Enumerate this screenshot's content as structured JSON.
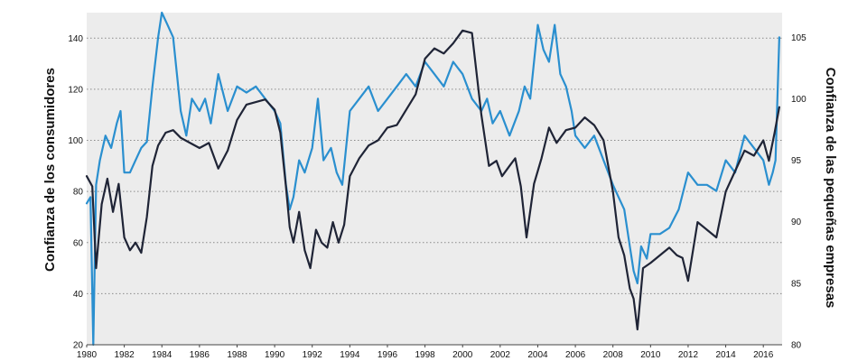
{
  "chart_data": {
    "type": "line",
    "title": "",
    "xlabel": "",
    "ylabel": "Confianza de los consumidores",
    "y2label": "Confianza de las pequeñas empresas",
    "xlim": [
      1980,
      2017
    ],
    "ylim": [
      20,
      150
    ],
    "y2lim": [
      80,
      107
    ],
    "grid": "horizontal dotted",
    "legend": "none",
    "colors": {
      "consumer": "#1f2436",
      "small_business": "#2a8fcf",
      "plot_background": "#ececec",
      "grid": "#8a8a8a"
    },
    "x_ticks": [
      "1980",
      "1982",
      "1984",
      "1986",
      "1988",
      "1990",
      "1992",
      "1994",
      "1996",
      "1998",
      "2000",
      "2002",
      "2004",
      "2006",
      "2008",
      "2010",
      "2012",
      "2014",
      "2016"
    ],
    "y_ticks": [
      "20",
      "40",
      "60",
      "80",
      "100",
      "120",
      "140"
    ],
    "y2_ticks": [
      "80",
      "85",
      "90",
      "95",
      "100",
      "105"
    ],
    "series": [
      {
        "axis": "left",
        "x": [
          1980.0,
          1980.3,
          1980.5,
          1980.8,
          1981.1,
          1981.4,
          1981.7,
          1982.0,
          1982.3,
          1982.6,
          1982.9,
          1983.2,
          1983.5,
          1983.8,
          1984.2,
          1984.6,
          1985.0,
          1985.5,
          1986.0,
          1986.5,
          1987.0,
          1987.5,
          1988.0,
          1988.5,
          1989.0,
          1989.5,
          1990.0,
          1990.3,
          1990.6,
          1990.8,
          1991.0,
          1991.3,
          1991.6,
          1991.9,
          1992.2,
          1992.5,
          1992.8,
          1993.1,
          1993.4,
          1993.7,
          1994.0,
          1994.5,
          1995.0,
          1995.5,
          1996.0,
          1996.5,
          1997.0,
          1997.5,
          1998.0,
          1998.5,
          1999.0,
          1999.5,
          2000.0,
          2000.5,
          2001.0,
          2001.4,
          2001.8,
          2002.1,
          2002.5,
          2002.8,
          2003.1,
          2003.4,
          2003.8,
          2004.2,
          2004.6,
          2005.0,
          2005.5,
          2006.0,
          2006.5,
          2007.0,
          2007.5,
          2008.0,
          2008.3,
          2008.6,
          2008.9,
          2009.1,
          2009.3,
          2009.6,
          2010.0,
          2010.5,
          2011.0,
          2011.4,
          2011.7,
          2012.0,
          2012.5,
          2013.0,
          2013.5,
          2014.0,
          2014.5,
          2015.0,
          2015.5,
          2016.0,
          2016.3,
          2016.6,
          2016.85
        ],
        "values": [
          86,
          82,
          50,
          75,
          85,
          72,
          83,
          62,
          57,
          60,
          56,
          70,
          90,
          98,
          103,
          104,
          101,
          99,
          97,
          99,
          89,
          96,
          108,
          114,
          115,
          116,
          112,
          103,
          82,
          66,
          60,
          72,
          57,
          50,
          65,
          60,
          58,
          68,
          60,
          67,
          86,
          93,
          98,
          100,
          105,
          106,
          112,
          118,
          132,
          136,
          134,
          138,
          143,
          142,
          110,
          90,
          92,
          86,
          90,
          93,
          82,
          62,
          83,
          93,
          105,
          99,
          104,
          105,
          109,
          106,
          100,
          80,
          62,
          55,
          42,
          38,
          26,
          50,
          52,
          55,
          58,
          55,
          54,
          45,
          68,
          65,
          62,
          80,
          88,
          96,
          94,
          100,
          92,
          103,
          113
        ]
      },
      {
        "axis": "right",
        "x": [
          1980.0,
          1980.2,
          1980.35,
          1980.5,
          1980.7,
          1981.0,
          1981.3,
          1981.6,
          1981.8,
          1982.0,
          1982.3,
          1982.6,
          1982.9,
          1983.2,
          1983.5,
          1983.8,
          1984.0,
          1984.3,
          1984.6,
          1984.8,
          1985.0,
          1985.3,
          1985.6,
          1986.0,
          1986.3,
          1986.6,
          1987.0,
          1987.5,
          1988.0,
          1988.5,
          1989.0,
          1989.5,
          1990.0,
          1990.3,
          1990.6,
          1990.8,
          1991.0,
          1991.3,
          1991.6,
          1992.0,
          1992.3,
          1992.6,
          1993.0,
          1993.3,
          1993.6,
          1994.0,
          1994.5,
          1995.0,
          1995.5,
          1996.0,
          1996.5,
          1997.0,
          1997.5,
          1998.0,
          1998.5,
          1999.0,
          1999.5,
          2000.0,
          2000.5,
          2001.0,
          2001.3,
          2001.6,
          2002.0,
          2002.5,
          2003.0,
          2003.3,
          2003.6,
          2004.0,
          2004.3,
          2004.6,
          2004.9,
          2005.2,
          2005.5,
          2005.8,
          2006.0,
          2006.5,
          2007.0,
          2007.5,
          2008.0,
          2008.3,
          2008.6,
          2008.9,
          2009.1,
          2009.3,
          2009.5,
          2009.8,
          2010.0,
          2010.5,
          2011.0,
          2011.5,
          2012.0,
          2012.5,
          2013.0,
          2013.5,
          2014.0,
          2014.5,
          2015.0,
          2015.5,
          2016.0,
          2016.3,
          2016.5,
          2016.65,
          2016.75,
          2016.85
        ],
        "values": [
          91.5,
          92,
          80,
          93,
          95,
          97,
          96,
          98,
          99,
          94,
          94,
          95,
          96,
          96.5,
          101,
          105,
          107,
          106,
          105,
          102,
          99,
          97,
          100,
          99,
          100,
          98,
          102,
          99,
          101,
          100.5,
          101,
          100,
          99,
          98,
          93,
          91,
          92,
          95,
          94,
          96,
          100,
          95,
          96,
          94,
          93,
          99,
          100,
          101,
          99,
          100,
          101,
          102,
          101,
          103,
          102,
          101,
          103,
          102,
          100,
          99,
          100,
          98,
          99,
          97,
          99,
          101,
          100,
          106,
          104,
          103,
          106,
          102,
          101,
          99,
          97,
          96,
          97,
          95,
          93,
          92,
          91,
          88,
          86,
          85,
          88,
          87,
          89,
          89,
          89.5,
          91,
          94,
          93,
          93,
          92.5,
          95,
          94,
          97,
          96,
          95,
          93,
          94,
          95,
          100,
          105
        ]
      }
    ]
  }
}
